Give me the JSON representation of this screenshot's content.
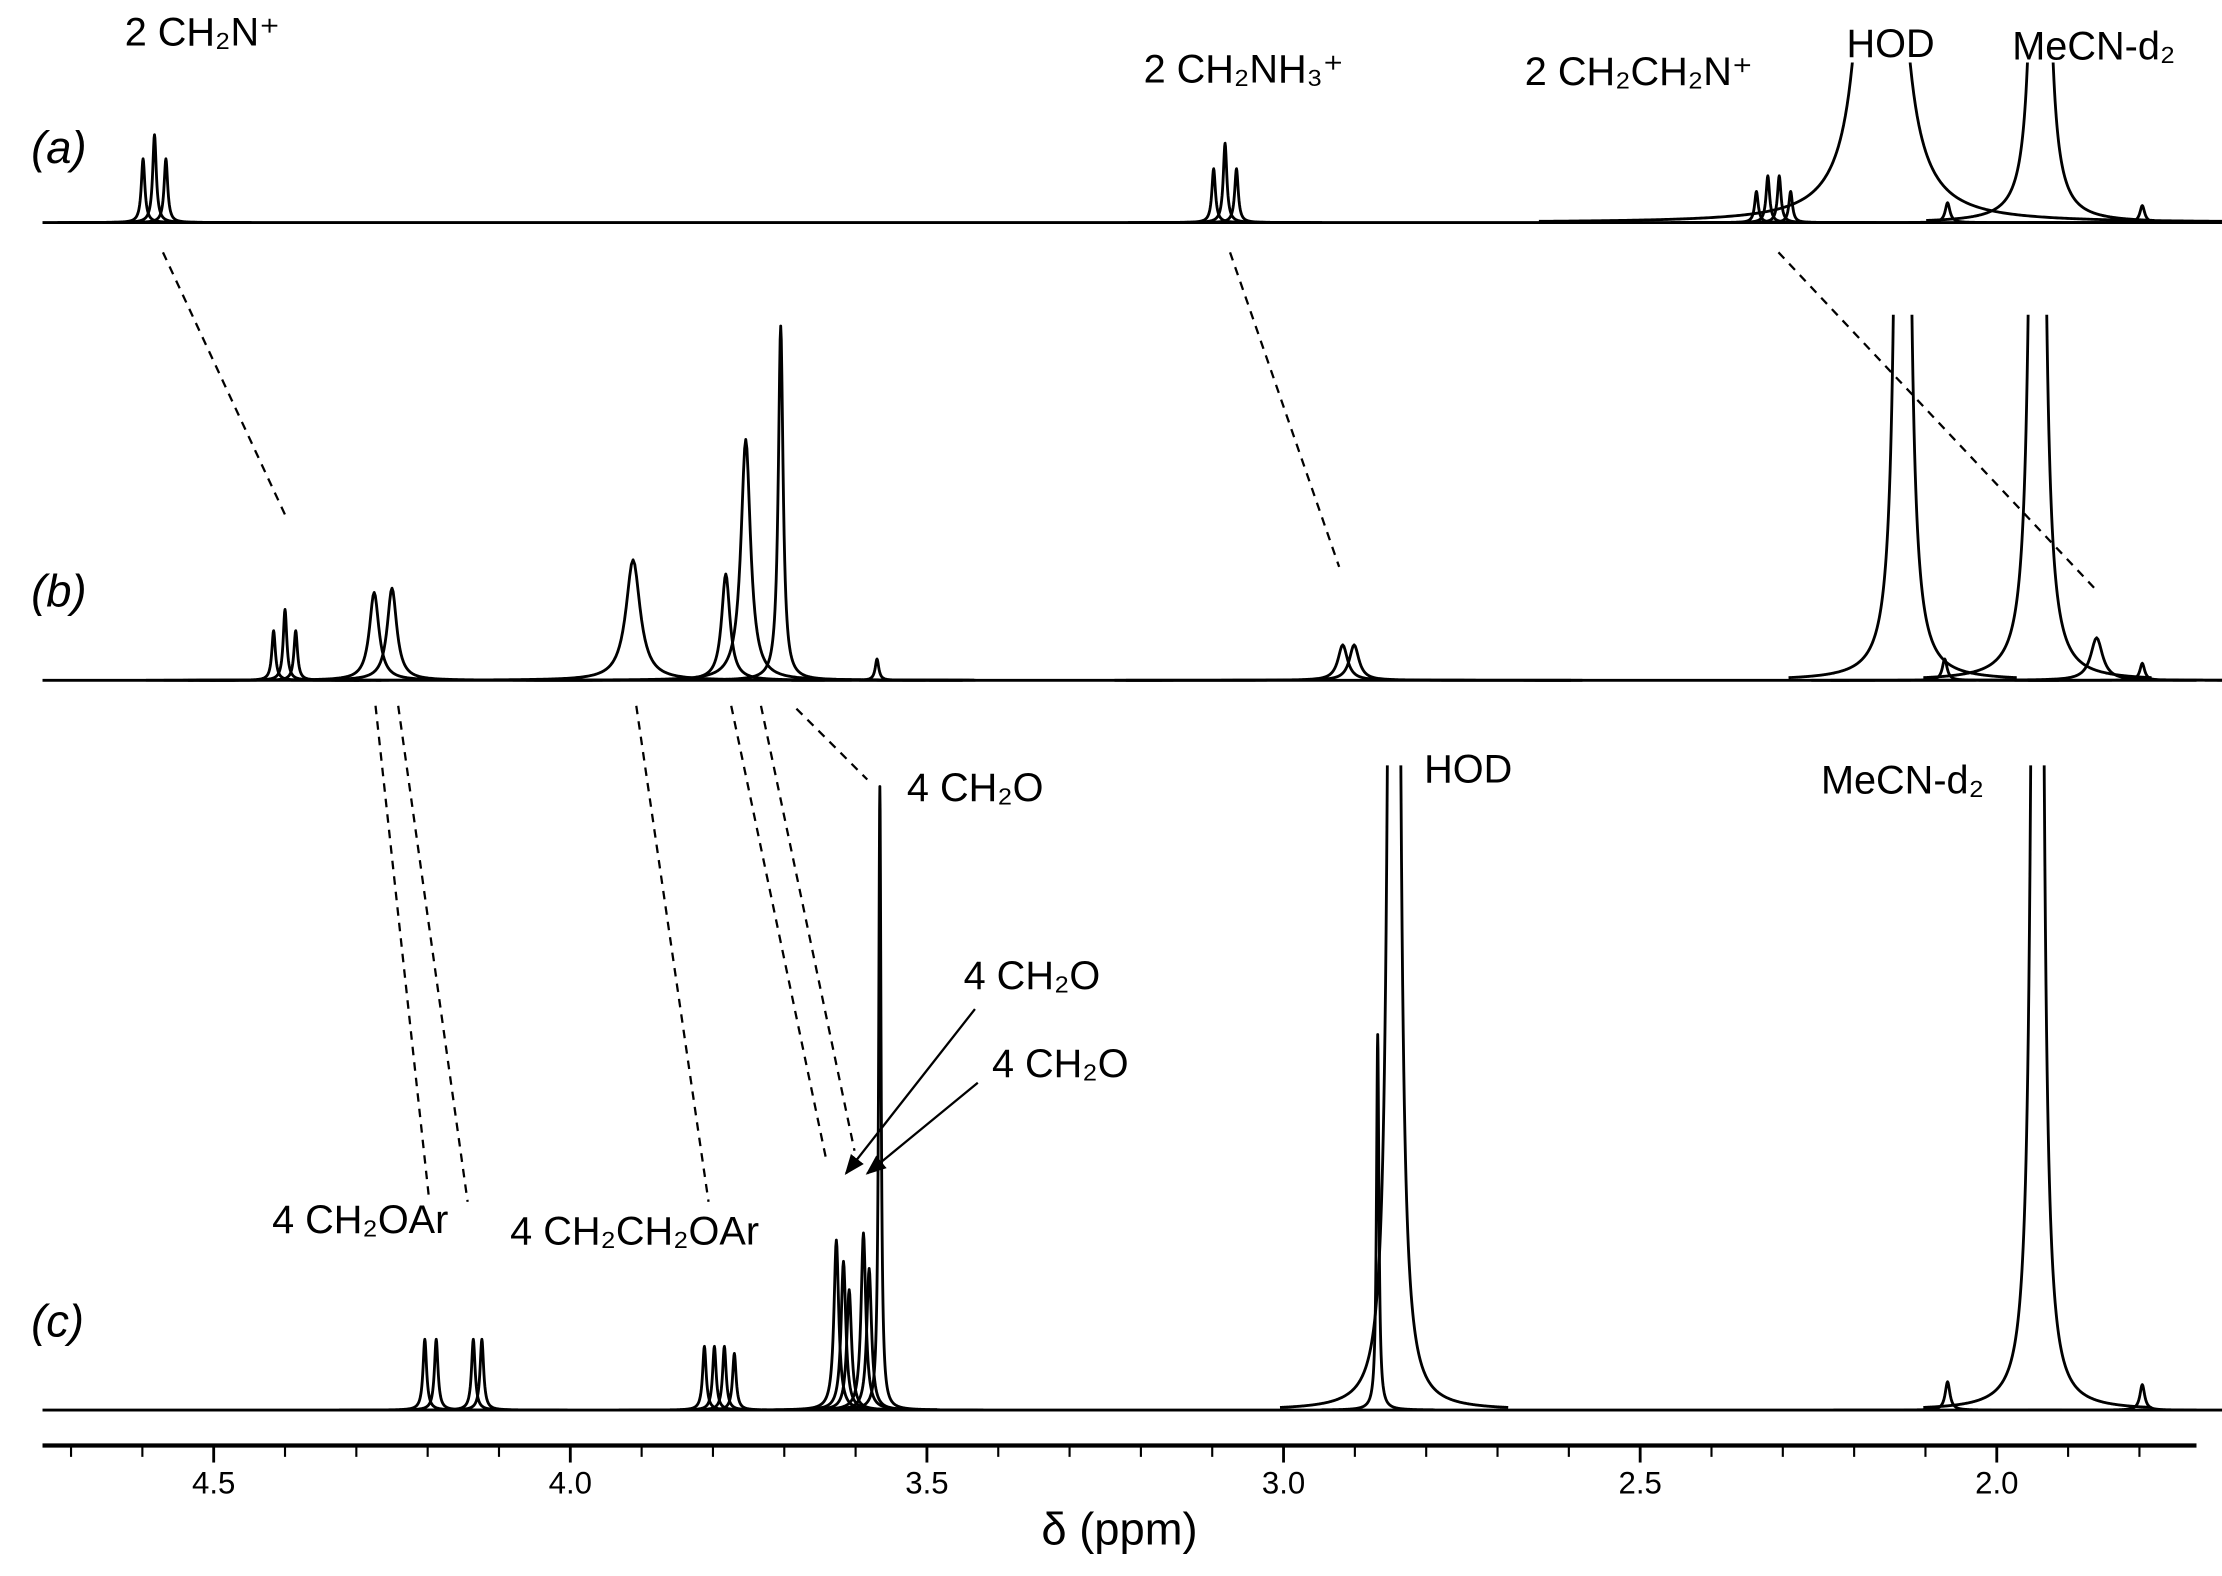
{
  "chart_data": {
    "type": "nmr-stack",
    "x_label": "δ (ppm)",
    "xlim": [
      4.74,
      1.72
    ],
    "xticks": [
      4.5,
      {
        "value": 4,
        "label": "4.0"
      },
      3.5,
      {
        "value": 3,
        "label": "3.0"
      },
      2.5,
      {
        "value": 2,
        "label": "2.0"
      }
    ],
    "xminorticks": [
      4.7,
      4.6,
      4.4,
      4.3,
      4.2,
      4.1,
      3.9,
      3.8,
      3.7,
      3.6,
      3.4,
      3.3,
      3.2,
      3.1,
      2.9,
      2.8,
      2.7,
      2.6,
      2.4,
      2.3,
      2.2,
      2.1,
      1.9,
      1.8
    ],
    "color": "#000000",
    "traces": [
      {
        "label": "(a)",
        "peaks": [
          {
            "ppm": 4.599,
            "height": 45,
            "width": 0.003
          },
          {
            "ppm": 4.583,
            "height": 62,
            "width": 0.003
          },
          {
            "ppm": 4.567,
            "height": 45,
            "width": 0.003
          },
          {
            "ppm": 3.098,
            "height": 38,
            "width": 0.003
          },
          {
            "ppm": 3.082,
            "height": 56,
            "width": 0.003
          },
          {
            "ppm": 3.066,
            "height": 38,
            "width": 0.003
          },
          {
            "ppm": 2.337,
            "height": 22,
            "width": 0.003
          },
          {
            "ppm": 2.321,
            "height": 33,
            "width": 0.003
          },
          {
            "ppm": 2.305,
            "height": 33,
            "width": 0.003
          },
          {
            "ppm": 2.289,
            "height": 22,
            "width": 0.003
          },
          {
            "ppm": 2.162,
            "height": 1400,
            "width": 0.012
          },
          {
            "ppm": 2.069,
            "height": 14,
            "width": 0.004
          },
          {
            "ppm": 1.939,
            "height": 2400,
            "width": 0.004
          },
          {
            "ppm": 1.796,
            "height": 12,
            "width": 0.004
          }
        ],
        "annotations": [
          "2 CH₂N⁺",
          "2 CH₂NH₃⁺",
          "2 CH₂CH₂N⁺",
          "HOD",
          "MeCN-d₂"
        ]
      },
      {
        "label": "(b)",
        "peaks": [
          {
            "ppm": 4.416,
            "height": 35,
            "width": 0.003
          },
          {
            "ppm": 4.4,
            "height": 50,
            "width": 0.003
          },
          {
            "ppm": 4.385,
            "height": 35,
            "width": 0.003
          },
          {
            "ppm": 4.275,
            "height": 62,
            "width": 0.008
          },
          {
            "ppm": 4.25,
            "height": 65,
            "width": 0.008
          },
          {
            "ppm": 3.912,
            "height": 85,
            "width": 0.012
          },
          {
            "ppm": 3.782,
            "height": 75,
            "width": 0.007
          },
          {
            "ppm": 3.754,
            "height": 170,
            "width": 0.008
          },
          {
            "ppm": 3.705,
            "height": 250,
            "width": 0.004
          },
          {
            "ppm": 3.57,
            "height": 15,
            "width": 0.003
          },
          {
            "ppm": 2.917,
            "height": 25,
            "width": 0.008
          },
          {
            "ppm": 2.901,
            "height": 25,
            "width": 0.008
          },
          {
            "ppm": 2.132,
            "height": 3000,
            "width": 0.004
          },
          {
            "ppm": 2.073,
            "height": 15,
            "width": 0.004
          },
          {
            "ppm": 1.943,
            "height": 3000,
            "width": 0.004
          },
          {
            "ppm": 1.86,
            "height": 30,
            "width": 0.01
          },
          {
            "ppm": 1.796,
            "height": 12,
            "width": 0.004
          }
        ],
        "annotations": []
      },
      {
        "label": "(c)",
        "peaks": [
          {
            "ppm": 4.204,
            "height": 50,
            "width": 0.003
          },
          {
            "ppm": 4.188,
            "height": 50,
            "width": 0.003
          },
          {
            "ppm": 4.136,
            "height": 50,
            "width": 0.003
          },
          {
            "ppm": 4.124,
            "height": 50,
            "width": 0.003
          },
          {
            "ppm": 3.812,
            "height": 45,
            "width": 0.003
          },
          {
            "ppm": 3.798,
            "height": 45,
            "width": 0.003
          },
          {
            "ppm": 3.784,
            "height": 45,
            "width": 0.003
          },
          {
            "ppm": 3.77,
            "height": 40,
            "width": 0.003
          },
          {
            "ppm": 3.627,
            "height": 120,
            "width": 0.004
          },
          {
            "ppm": 3.617,
            "height": 105,
            "width": 0.004
          },
          {
            "ppm": 3.609,
            "height": 85,
            "width": 0.004
          },
          {
            "ppm": 3.589,
            "height": 125,
            "width": 0.004
          },
          {
            "ppm": 3.581,
            "height": 100,
            "width": 0.004
          },
          {
            "ppm": 3.566,
            "height": 440,
            "width": 0.002
          },
          {
            "ppm": 2.868,
            "height": 265,
            "width": 0.002
          },
          {
            "ppm": 2.845,
            "height": 3000,
            "width": 0.004
          },
          {
            "ppm": 2.069,
            "height": 20,
            "width": 0.004
          },
          {
            "ppm": 1.943,
            "height": 3000,
            "width": 0.004
          },
          {
            "ppm": 1.796,
            "height": 18,
            "width": 0.004
          }
        ],
        "annotations": [
          "4 CH₂O",
          "HOD",
          "MeCN-d₂",
          "4 CH₂O",
          "4 CH₂O",
          "4 CH₂OAr",
          "4 CH₂CH₂OAr"
        ]
      }
    ]
  }
}
